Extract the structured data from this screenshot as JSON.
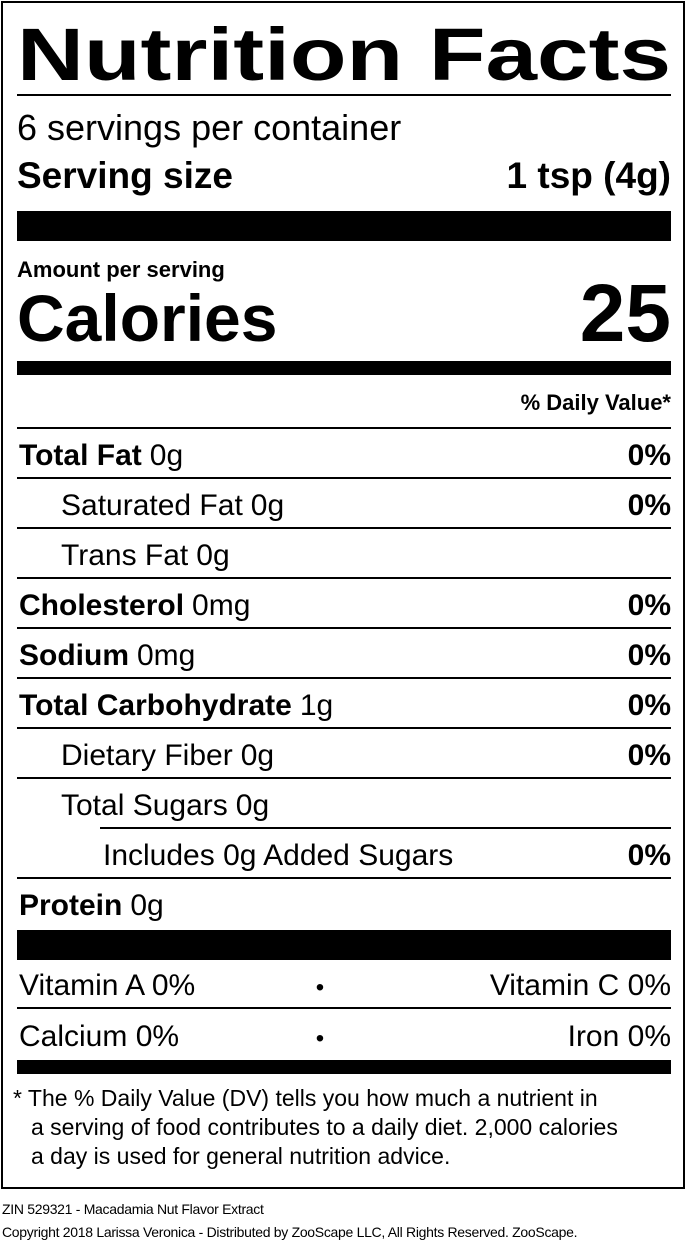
{
  "header": {
    "title": "Nutrition Facts",
    "servings": "6 servings per container",
    "serving_size_label": "Serving size",
    "serving_size": "1 tsp (4g)"
  },
  "calories": {
    "amount_label": "Amount per serving",
    "label": "Calories",
    "value": 25
  },
  "daily_value_header": "% Daily Value*",
  "nutrients": [
    {
      "name": "Total Fat",
      "amount": "0g",
      "dv": "0%",
      "bold": true,
      "indent": 0
    },
    {
      "name": "Saturated Fat",
      "amount": "0g",
      "dv": "0%",
      "bold": false,
      "indent": 1
    },
    {
      "name": "Trans Fat",
      "amount": "0g",
      "bold": false,
      "indent": 1
    },
    {
      "name": "Cholesterol",
      "amount": "0mg",
      "dv": "0%",
      "bold": true,
      "indent": 0
    },
    {
      "name": "Sodium",
      "amount": "0mg",
      "dv": "0%",
      "bold": true,
      "indent": 0
    },
    {
      "name": "Total Carbohydrate",
      "amount": "1g",
      "dv": "0%",
      "bold": true,
      "indent": 0
    },
    {
      "name": "Dietary Fiber",
      "amount": "0g",
      "dv": "0%",
      "bold": false,
      "indent": 1
    },
    {
      "name": "Total Sugars",
      "amount": "0g",
      "bold": false,
      "indent": 1
    },
    {
      "name": "Includes 0g Added Sugars",
      "dv": "0%",
      "bold": false,
      "indent": 2
    },
    {
      "name": "Protein",
      "amount": "0g",
      "bold": true,
      "indent": 0
    }
  ],
  "vitamins": [
    {
      "left": "Vitamin A 0%",
      "separator": "•",
      "right": "Vitamin C 0%"
    },
    {
      "left": "Calcium 0%",
      "separator": "•",
      "right": "Iron 0%"
    }
  ],
  "footnote": [
    "* The % Daily Value (DV) tells you how much a nutrient in",
    "a serving of food contributes to a daily diet. 2,000 calories",
    "a day is used for general nutrition advice."
  ],
  "footer": [
    "ZIN 529321 - Macadamia Nut Flavor Extract",
    "Copyright 2018 Larissa Veronica - Distributed by ZooScape LLC, All Rights Reserved. ZooScape."
  ]
}
